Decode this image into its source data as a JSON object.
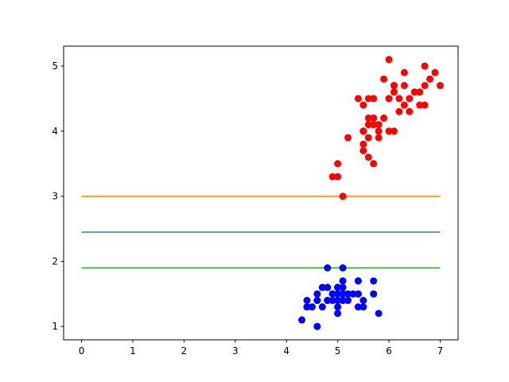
{
  "chart_data": {
    "type": "scatter",
    "xlim": [
      -0.35,
      7.35
    ],
    "ylim": [
      0.795,
      5.305
    ],
    "xticks": [
      0,
      1,
      2,
      3,
      4,
      5,
      6,
      7
    ],
    "yticks": [
      1,
      2,
      3,
      4,
      5
    ],
    "lines": [
      {
        "color": "#ff7f0e",
        "x": [
          0,
          7
        ],
        "values": [
          3.0,
          3.0
        ]
      },
      {
        "color": "#1f77b4",
        "x": [
          0,
          7
        ],
        "values": [
          2.45,
          2.45
        ]
      },
      {
        "color": "#2ca02c",
        "x": [
          0,
          7
        ],
        "values": [
          1.9,
          1.9
        ]
      }
    ],
    "series": [
      {
        "color": "#0000ff",
        "x": [
          5.1,
          4.9,
          4.7,
          4.6,
          5.0,
          5.4,
          4.6,
          5.0,
          4.4,
          4.9,
          5.4,
          4.8,
          4.8,
          4.3,
          5.8,
          5.7,
          5.4,
          5.1,
          5.7,
          5.1,
          5.4,
          5.1,
          4.6,
          5.1,
          4.8,
          5.0,
          5.0,
          5.2,
          5.2,
          4.7,
          4.8,
          5.4,
          5.2,
          5.5,
          4.9,
          5.0,
          5.5,
          4.9,
          4.4,
          5.1,
          5.0,
          4.5,
          4.4,
          5.0,
          5.1,
          4.8,
          5.1,
          4.6,
          5.3,
          5.0
        ],
        "values": [
          1.4,
          1.4,
          1.3,
          1.5,
          1.4,
          1.7,
          1.4,
          1.5,
          1.4,
          1.5,
          1.5,
          1.6,
          1.4,
          1.1,
          1.2,
          1.5,
          1.3,
          1.4,
          1.7,
          1.5,
          1.7,
          1.5,
          1.0,
          1.7,
          1.9,
          1.6,
          1.6,
          1.5,
          1.4,
          1.6,
          1.6,
          1.5,
          1.5,
          1.4,
          1.5,
          1.2,
          1.3,
          1.5,
          1.3,
          1.5,
          1.3,
          1.3,
          1.3,
          1.6,
          1.9,
          1.4,
          1.6,
          1.4,
          1.5,
          1.4
        ]
      },
      {
        "color": "#ff0000",
        "x": [
          7.0,
          6.4,
          6.9,
          5.5,
          6.5,
          5.7,
          6.3,
          4.9,
          6.6,
          5.2,
          5.0,
          5.9,
          6.0,
          6.1,
          5.6,
          6.7,
          5.6,
          5.8,
          6.2,
          5.6,
          5.9,
          6.1,
          6.3,
          6.1,
          6.4,
          6.6,
          6.8,
          6.7,
          6.0,
          5.7,
          5.5,
          5.5,
          5.8,
          6.0,
          5.4,
          6.0,
          6.7,
          6.3,
          5.6,
          5.5,
          5.5,
          6.1,
          5.8,
          5.0,
          5.6,
          5.7,
          5.7,
          6.2,
          5.1,
          5.7
        ],
        "values": [
          4.7,
          4.5,
          4.9,
          4.0,
          4.6,
          4.5,
          4.7,
          3.3,
          4.6,
          3.9,
          3.5,
          4.2,
          4.0,
          4.7,
          3.6,
          4.4,
          4.5,
          4.1,
          4.5,
          3.9,
          4.8,
          4.0,
          4.9,
          4.7,
          4.3,
          4.4,
          4.8,
          5.0,
          4.5,
          3.5,
          3.8,
          3.7,
          3.9,
          5.1,
          4.5,
          4.5,
          4.7,
          4.4,
          4.1,
          4.0,
          4.4,
          4.6,
          4.0,
          3.3,
          4.2,
          4.2,
          4.2,
          4.3,
          3.0,
          4.1
        ]
      }
    ]
  }
}
